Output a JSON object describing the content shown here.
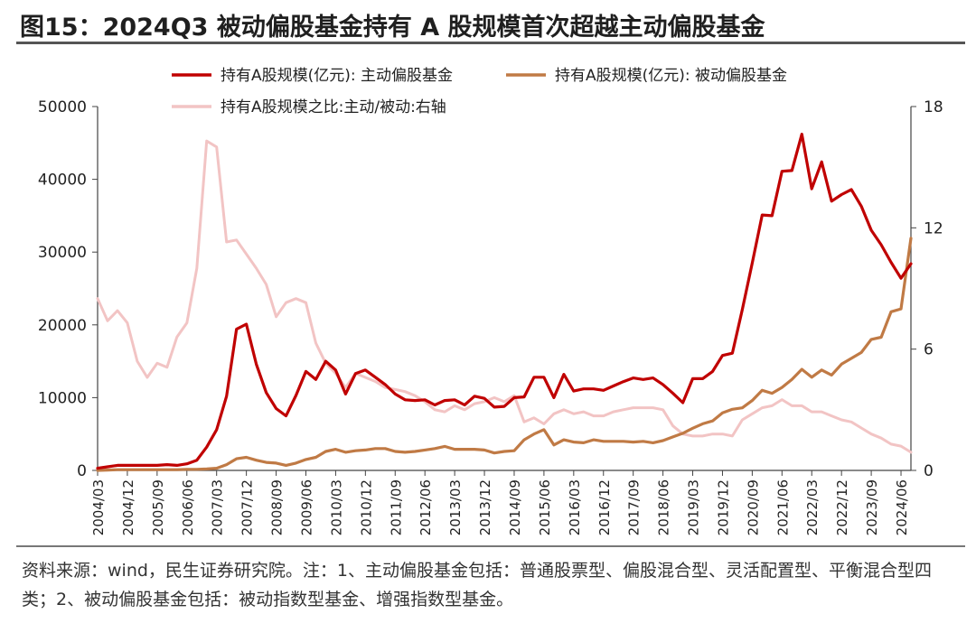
{
  "title": "图15：2024Q3 被动偏股基金持有 A 股规模首次超越主动偏股基金",
  "source": "资料来源：wind，民生证券研究院。注：1、主动偏股基金包括：普通股票型、偏股混合型、灵活配置型、平衡混合型四类；2、被动偏股基金包括：被动指数型基金、增强指数型基金。",
  "chart_data": {
    "type": "line",
    "legend_position": "top",
    "grid": false,
    "xlabel": "",
    "ylabel": "",
    "ylim": [
      0,
      50000
    ],
    "y_ticks": [
      "0",
      "10000",
      "20000",
      "30000",
      "40000",
      "50000"
    ],
    "y2lim": [
      0,
      18
    ],
    "y2_ticks": [
      "0",
      "6",
      "12",
      "18"
    ],
    "x_ticks": [
      "2004/03",
      "2004/12",
      "2005/09",
      "2006/06",
      "2007/03",
      "2007/12",
      "2008/09",
      "2009/06",
      "2010/03",
      "2010/12",
      "2011/09",
      "2012/06",
      "2013/03",
      "2013/12",
      "2014/09",
      "2015/06",
      "2016/03",
      "2016/12",
      "2017/09",
      "2018/06",
      "2019/03",
      "2019/12",
      "2020/09",
      "2021/06",
      "2022/03",
      "2022/12",
      "2023/09",
      "2024/06"
    ],
    "x": [
      "2004/03",
      "2004/06",
      "2004/09",
      "2004/12",
      "2005/03",
      "2005/06",
      "2005/09",
      "2005/12",
      "2006/03",
      "2006/06",
      "2006/09",
      "2006/12",
      "2007/03",
      "2007/06",
      "2007/09",
      "2007/12",
      "2008/03",
      "2008/06",
      "2008/09",
      "2008/12",
      "2009/03",
      "2009/06",
      "2009/09",
      "2009/12",
      "2010/03",
      "2010/06",
      "2010/09",
      "2010/12",
      "2011/03",
      "2011/06",
      "2011/09",
      "2011/12",
      "2012/03",
      "2012/06",
      "2012/09",
      "2012/12",
      "2013/03",
      "2013/06",
      "2013/09",
      "2013/12",
      "2014/03",
      "2014/06",
      "2014/09",
      "2014/12",
      "2015/03",
      "2015/06",
      "2015/09",
      "2015/12",
      "2016/03",
      "2016/06",
      "2016/09",
      "2016/12",
      "2017/03",
      "2017/06",
      "2017/09",
      "2017/12",
      "2018/03",
      "2018/06",
      "2018/09",
      "2018/12",
      "2019/03",
      "2019/06",
      "2019/09",
      "2019/12",
      "2020/03",
      "2020/06",
      "2020/09",
      "2020/12",
      "2021/03",
      "2021/06",
      "2021/09",
      "2021/12",
      "2022/03",
      "2022/06",
      "2022/09",
      "2022/12",
      "2023/03",
      "2023/06",
      "2023/09",
      "2023/12",
      "2024/03",
      "2024/06",
      "2024/09"
    ],
    "series": [
      {
        "name": "持有A股规模(亿元): 主动偏股基金",
        "color": "#c00000",
        "axis": "left",
        "values": [
          300,
          500,
          700,
          700,
          700,
          700,
          700,
          800,
          700,
          900,
          1400,
          3200,
          5600,
          10200,
          19400,
          20100,
          14600,
          10700,
          8500,
          7500,
          10300,
          13600,
          12500,
          15000,
          13800,
          10500,
          13300,
          13800,
          12800,
          11800,
          10500,
          9700,
          9600,
          9700,
          9000,
          9600,
          9700,
          9000,
          10200,
          9900,
          8700,
          8800,
          10000,
          10100,
          12800,
          12800,
          10000,
          13200,
          10900,
          11200,
          11200,
          11000,
          11600,
          12200,
          12700,
          12500,
          12700,
          11800,
          10600,
          9300,
          12600,
          12600,
          13600,
          15800,
          16100,
          22100,
          28500,
          35100,
          35000,
          41100,
          41200,
          46200,
          38700,
          42400,
          37000,
          37900,
          38600,
          36300,
          33000,
          31000,
          28600,
          26400,
          28400
        ]
      },
      {
        "name": "持有A股规模(亿元): 被动偏股基金",
        "color": "#c07a45",
        "axis": "left",
        "values": [
          0,
          50,
          100,
          100,
          100,
          100,
          100,
          100,
          100,
          150,
          150,
          200,
          300,
          800,
          1600,
          1800,
          1400,
          1100,
          1000,
          700,
          1000,
          1500,
          1800,
          2600,
          2900,
          2500,
          2700,
          2800,
          3000,
          3000,
          2600,
          2500,
          2600,
          2800,
          3000,
          3300,
          2900,
          2900,
          2900,
          2800,
          2400,
          2600,
          2700,
          4200,
          5000,
          5600,
          3500,
          4200,
          3900,
          3800,
          4200,
          4000,
          4000,
          4000,
          3900,
          4000,
          3800,
          4100,
          4600,
          5100,
          5800,
          6400,
          6800,
          7900,
          8400,
          8600,
          9600,
          11000,
          10600,
          11400,
          12500,
          13900,
          12800,
          13800,
          13100,
          14600,
          15400,
          16200,
          18000,
          18300,
          21800,
          22200,
          31900
        ]
      },
      {
        "name": "持有A股规模之比:主动/被动:右轴",
        "color": "#f2c4c4",
        "axis": "right",
        "values": [
          8.5,
          7.4,
          7.9,
          7.3,
          5.4,
          4.6,
          5.3,
          5.1,
          6.6,
          7.3,
          10.0,
          16.3,
          16.0,
          11.3,
          11.4,
          10.7,
          10.0,
          9.2,
          7.6,
          8.3,
          8.5,
          8.3,
          6.3,
          5.3,
          4.8,
          4.1,
          4.8,
          4.6,
          4.4,
          4.1,
          4.0,
          3.9,
          3.7,
          3.4,
          3.0,
          2.9,
          3.2,
          3.0,
          3.3,
          3.4,
          3.6,
          3.4,
          3.7,
          2.4,
          2.6,
          2.3,
          2.8,
          3.0,
          2.8,
          2.9,
          2.7,
          2.7,
          2.9,
          3.0,
          3.1,
          3.1,
          3.1,
          3.0,
          2.2,
          1.8,
          1.7,
          1.7,
          1.8,
          1.8,
          1.7,
          2.5,
          2.8,
          3.1,
          3.2,
          3.5,
          3.2,
          3.2,
          2.9,
          2.9,
          2.7,
          2.5,
          2.4,
          2.1,
          1.8,
          1.6,
          1.3,
          1.2,
          0.9
        ]
      }
    ]
  }
}
